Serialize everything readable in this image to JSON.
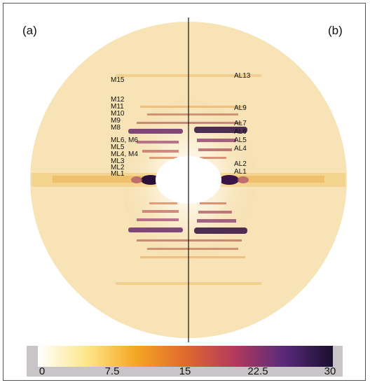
{
  "panels": {
    "left": "(a)",
    "right": "(b)"
  },
  "meridional_labels": [
    "M15",
    "M12",
    "M11",
    "M10",
    "M9",
    "M8",
    "ML6, M6",
    "ML5",
    "ML4, M4",
    "ML3",
    "ML2",
    "ML1"
  ],
  "actin_labels": [
    "AL13",
    "AL9",
    "AL7",
    "AL6",
    "AL5",
    "AL4",
    "AL2",
    "AL1"
  ],
  "colorbar": {
    "ticks": [
      "0",
      "7.5",
      "15",
      "22.5",
      "30"
    ],
    "colors": [
      "#ffffff",
      "#fde68a",
      "#f5a623",
      "#e0692c",
      "#b23a5d",
      "#5a2a7a",
      "#1a0f2e"
    ]
  }
}
